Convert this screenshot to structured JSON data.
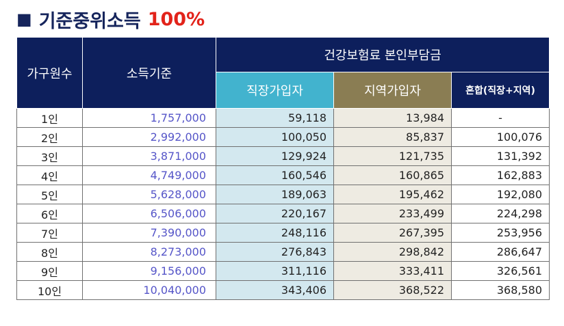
{
  "title": {
    "marker": "■",
    "text": "기준중위소득",
    "percent": "100%"
  },
  "table": {
    "headers": {
      "household": "가구원수",
      "income": "소득기준",
      "premium_group": "건강보험료 본인부담금",
      "employee": "직장가입자",
      "regional": "지역가입자",
      "mixed": "혼합(직장+지역)"
    },
    "rows": [
      {
        "household": "1인",
        "income": "1,757,000",
        "employee": "59,118",
        "regional": "13,984",
        "mixed": "-"
      },
      {
        "household": "2인",
        "income": "2,992,000",
        "employee": "100,050",
        "regional": "85,837",
        "mixed": "100,076"
      },
      {
        "household": "3인",
        "income": "3,871,000",
        "employee": "129,924",
        "regional": "121,735",
        "mixed": "131,392"
      },
      {
        "household": "4인",
        "income": "4,749,000",
        "employee": "160,546",
        "regional": "160,865",
        "mixed": "162,883"
      },
      {
        "household": "5인",
        "income": "5,628,000",
        "employee": "189,063",
        "regional": "195,462",
        "mixed": "192,080"
      },
      {
        "household": "6인",
        "income": "6,506,000",
        "employee": "220,167",
        "regional": "233,499",
        "mixed": "224,298"
      },
      {
        "household": "7인",
        "income": "7,390,000",
        "employee": "248,116",
        "regional": "267,395",
        "mixed": "253,956"
      },
      {
        "household": "8인",
        "income": "8,273,000",
        "employee": "276,843",
        "regional": "298,842",
        "mixed": "286,647"
      },
      {
        "household": "9인",
        "income": "9,156,000",
        "employee": "311,116",
        "regional": "333,411",
        "mixed": "326,561"
      },
      {
        "household": "10인",
        "income": "10,040,000",
        "employee": "343,406",
        "regional": "368,522",
        "mixed": "368,580"
      }
    ]
  }
}
